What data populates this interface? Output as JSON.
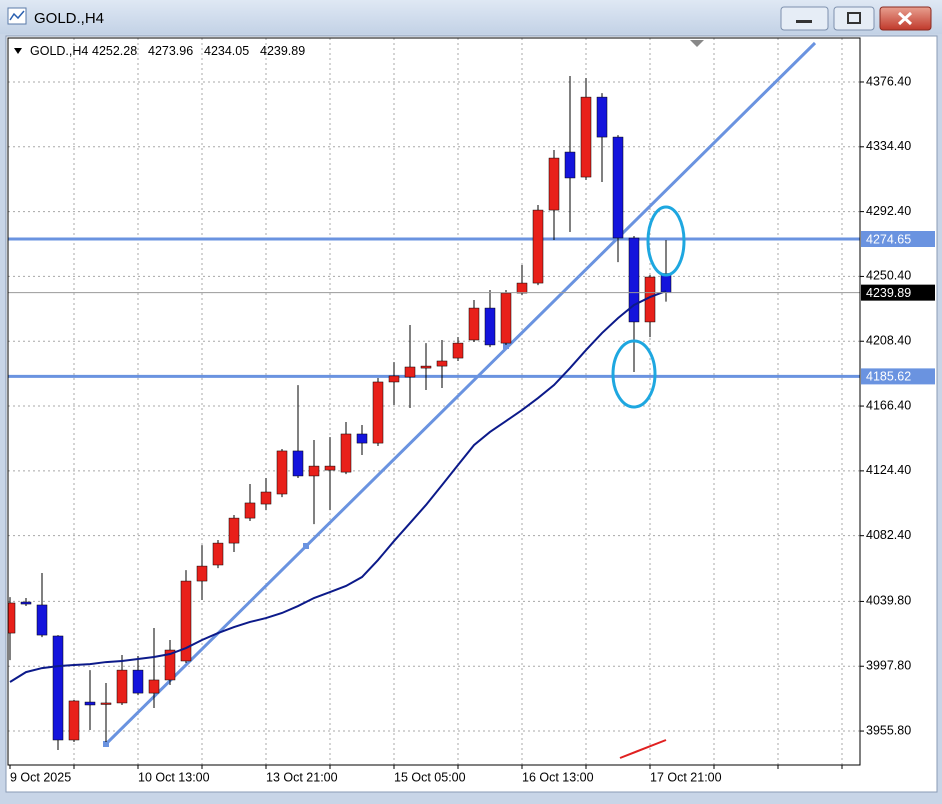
{
  "window_title": "GOLD.,H4",
  "chart_data": {
    "type": "candlestick",
    "title": "GOLD.,H4",
    "categories": [
      "9 Oct 2025",
      null,
      null,
      null,
      null,
      null,
      null,
      null,
      "10 Oct 13:00",
      null,
      null,
      null,
      null,
      null,
      null,
      null,
      "13 Oct 21:00",
      null,
      null,
      null,
      null,
      null,
      null,
      null,
      "15 Oct 05:00",
      null,
      null,
      null,
      null,
      null,
      null,
      null,
      "16 Oct 13:00",
      null,
      null,
      null,
      null,
      null,
      null,
      null,
      "17 Oct 21:00",
      null
    ],
    "open": [
      4019.3,
      4039.4,
      4037.5,
      4017.4,
      3950.0,
      3974.6,
      3973.3,
      3974.0,
      3995.3,
      3980.4,
      3988.9,
      4001.2,
      4053.0,
      4063.4,
      4077.6,
      4093.8,
      4102.9,
      4109.4,
      4137.3,
      4121.1,
      4124.9,
      4123.6,
      4148.3,
      4142.4,
      4182.0,
      4185.2,
      4191.0,
      4192.3,
      4197.5,
      4209.2,
      4229.9,
      4207.2,
      4239.6,
      4246.1,
      4293.4,
      4331.0,
      4314.8,
      4366.6,
      4340.7,
      4275.3,
      4220.9,
      4252.28
    ],
    "high": [
      4042.6,
      4042.0,
      4058.2,
      4018.0,
      3975.9,
      3995.3,
      3986.9,
      4005.1,
      4004.4,
      4022.6,
      4014.8,
      4060.1,
      4076.3,
      4079.6,
      4095.8,
      4115.9,
      4119.8,
      4138.6,
      4180.0,
      4144.4,
      4146.3,
      4156.1,
      4154.1,
      4184.6,
      4194.9,
      4218.9,
      4207.2,
      4209.2,
      4211.1,
      4235.1,
      4241.6,
      4241.6,
      4257.8,
      4296.7,
      4332.3,
      4380.3,
      4379.0,
      4369.2,
      4342.0,
      4276.6,
      4251.3,
      4273.96
    ],
    "low": [
      4001.8,
      4036.8,
      4016.7,
      3943.5,
      3948.7,
      3956.5,
      3948.7,
      3972.7,
      3979.1,
      3970.7,
      3985.6,
      3999.9,
      4040.7,
      4061.4,
      4071.8,
      4091.9,
      4099.0,
      4107.4,
      4119.8,
      4089.9,
      4099.0,
      4122.3,
      4134.7,
      4140.5,
      4167.1,
      4165.1,
      4176.8,
      4178.1,
      4195.6,
      4207.9,
      4204.6,
      4206.0,
      4238.3,
      4244.8,
      4274.0,
      4279.2,
      4312.9,
      4311.6,
      4259.7,
      4188.5,
      4211.1,
      4234.05
    ],
    "close": [
      4038.8,
      4038.1,
      4018.0,
      3950.0,
      3975.3,
      3972.7,
      3974.0,
      3995.3,
      3980.4,
      3988.9,
      4008.3,
      4053.0,
      4062.7,
      4077.6,
      4093.8,
      4103.6,
      4110.7,
      4137.3,
      4121.1,
      4127.5,
      4127.5,
      4148.3,
      4142.4,
      4182.0,
      4185.9,
      4191.7,
      4192.3,
      4195.6,
      4207.2,
      4229.9,
      4206.0,
      4239.6,
      4246.1,
      4293.4,
      4327.1,
      4314.2,
      4366.6,
      4340.7,
      4275.3,
      4220.9,
      4250.0,
      4239.89
    ],
    "up_color": "#e8201a",
    "down_color": "#1414dc",
    "moving_average": {
      "color": "#0c1a8a",
      "values": [
        3987.6,
        3994.0,
        3996.6,
        3997.9,
        3998.6,
        3999.2,
        4000.5,
        4001.2,
        4002.5,
        4003.8,
        4005.7,
        4009.6,
        4014.8,
        4019.3,
        4023.2,
        4026.5,
        4029.0,
        4032.3,
        4036.8,
        4042.0,
        4045.9,
        4049.8,
        4055.6,
        4066.6,
        4078.9,
        4090.6,
        4102.3,
        4115.2,
        4128.2,
        4141.1,
        4149.6,
        4156.7,
        4163.8,
        4171.6,
        4180.0,
        4191.0,
        4202.7,
        4213.7,
        4223.4,
        4231.9,
        4237.0,
        4240.9
      ]
    },
    "levels": [
      4274.65,
      4185.62
    ],
    "level_color": "#6a93e0",
    "ylim": [
      3933.8,
      4404.9
    ],
    "yticks": [
      {
        "value": 4376.4,
        "label": "4376.40"
      },
      {
        "value": 4334.4,
        "label": "4334.40"
      },
      {
        "value": 4292.4,
        "label": "4292.40"
      },
      {
        "value": 4250.4,
        "label": "4250.40"
      },
      {
        "value": 4208.4,
        "label": "4208.40"
      },
      {
        "value": 4166.4,
        "label": "4166.40"
      },
      {
        "value": 4124.4,
        "label": "4124.40"
      },
      {
        "value": 4082.4,
        "label": "4082.40"
      },
      {
        "value": 4039.8,
        "label": "4039.80"
      },
      {
        "value": 3997.8,
        "label": "3997.80"
      },
      {
        "value": 3955.8,
        "label": "3955.80"
      }
    ],
    "grid": true
  }
}
